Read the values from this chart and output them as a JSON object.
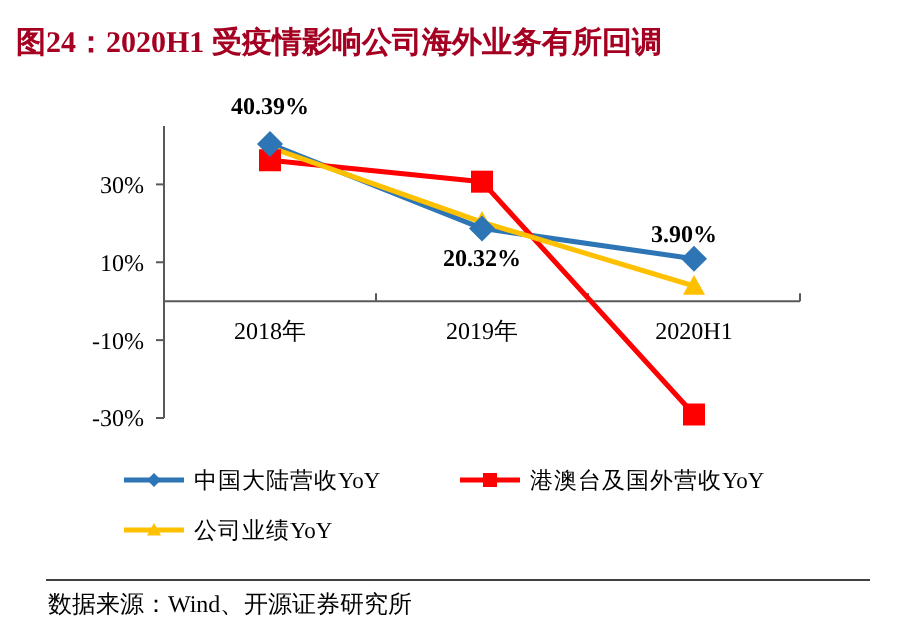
{
  "chart_data": {
    "type": "line",
    "title": "图24：2020H1 受疫情影响公司海外业务有所回调",
    "categories": [
      "2018年",
      "2019年",
      "2020H1"
    ],
    "series": [
      {
        "name": "中国大陆营收YoY",
        "color": "#2e75b6",
        "marker": "diamond",
        "values": [
          40.39,
          18.7,
          10.9
        ],
        "value_labels": [
          "40.39%",
          null,
          null
        ]
      },
      {
        "name": "港澳台及国外营收YoY",
        "color": "#ff0000",
        "marker": "square",
        "values": [
          36.2,
          30.7,
          -29.1
        ]
      },
      {
        "name": "公司业绩YoY",
        "color": "#ffc000",
        "marker": "triangle",
        "values": [
          39.5,
          20.32,
          3.9
        ],
        "value_labels": [
          null,
          "20.32%",
          "3.90%"
        ]
      }
    ],
    "ylim": [
      -30,
      45
    ],
    "yticks": [
      {
        "value": -30,
        "label": "-30%"
      },
      {
        "value": -10,
        "label": "-10%"
      },
      {
        "value": 10,
        "label": "10%"
      },
      {
        "value": 30,
        "label": "30%"
      }
    ],
    "grid": false,
    "legend": "bottom",
    "annotations": [
      "数据来源：Wind、开源证券研究所"
    ]
  }
}
